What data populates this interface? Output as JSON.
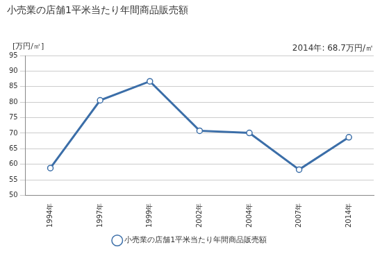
{
  "chart_data": {
    "type": "line",
    "title": "小売業の店舗1平米当たり年間商品販売額",
    "y_label": "[万円/㎡]",
    "annotations": [
      "2014年: 68.7万円/㎡"
    ],
    "categories": [
      "1994年",
      "1997年",
      "1999年",
      "2002年",
      "2004年",
      "2007年",
      "2014年"
    ],
    "series": [
      {
        "name": "小売業の店舗1平米当たり年間商品販売額",
        "color": "#3b6ea8",
        "marker": "circle",
        "values": [
          58.8,
          80.6,
          86.7,
          70.8,
          70.1,
          58.3,
          68.7
        ]
      }
    ],
    "ylim": [
      50,
      95
    ],
    "yticks": [
      50,
      55,
      60,
      65,
      70,
      75,
      80,
      85,
      90,
      95
    ],
    "grid": true,
    "legend": "bottom"
  }
}
